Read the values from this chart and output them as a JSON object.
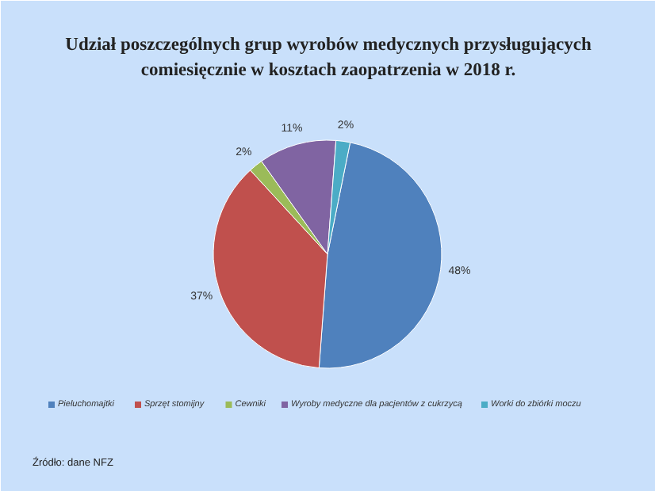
{
  "chart_data": {
    "type": "pie",
    "title": "Udział poszczególnych grup wyrobów medycznych przysługujących comiesięcznie w kosztach zaopatrzenia w 2018 r.",
    "categories": [
      "Pieluchomajtki",
      "Sprzęt stomijny",
      "Cewniki",
      "Wyroby medyczne dla pacjentów z cukrzycą",
      "Worki do zbiórki moczu"
    ],
    "values": [
      48,
      37,
      2,
      11,
      2
    ],
    "colors": [
      "#4f81bd",
      "#c0504d",
      "#9bbb59",
      "#8064a2",
      "#4bacc6"
    ],
    "value_labels": [
      "48%",
      "37%",
      "2%",
      "11%",
      "2%"
    ],
    "legend": "bottom",
    "annotations": [
      "Źródło: dane NFZ"
    ]
  }
}
